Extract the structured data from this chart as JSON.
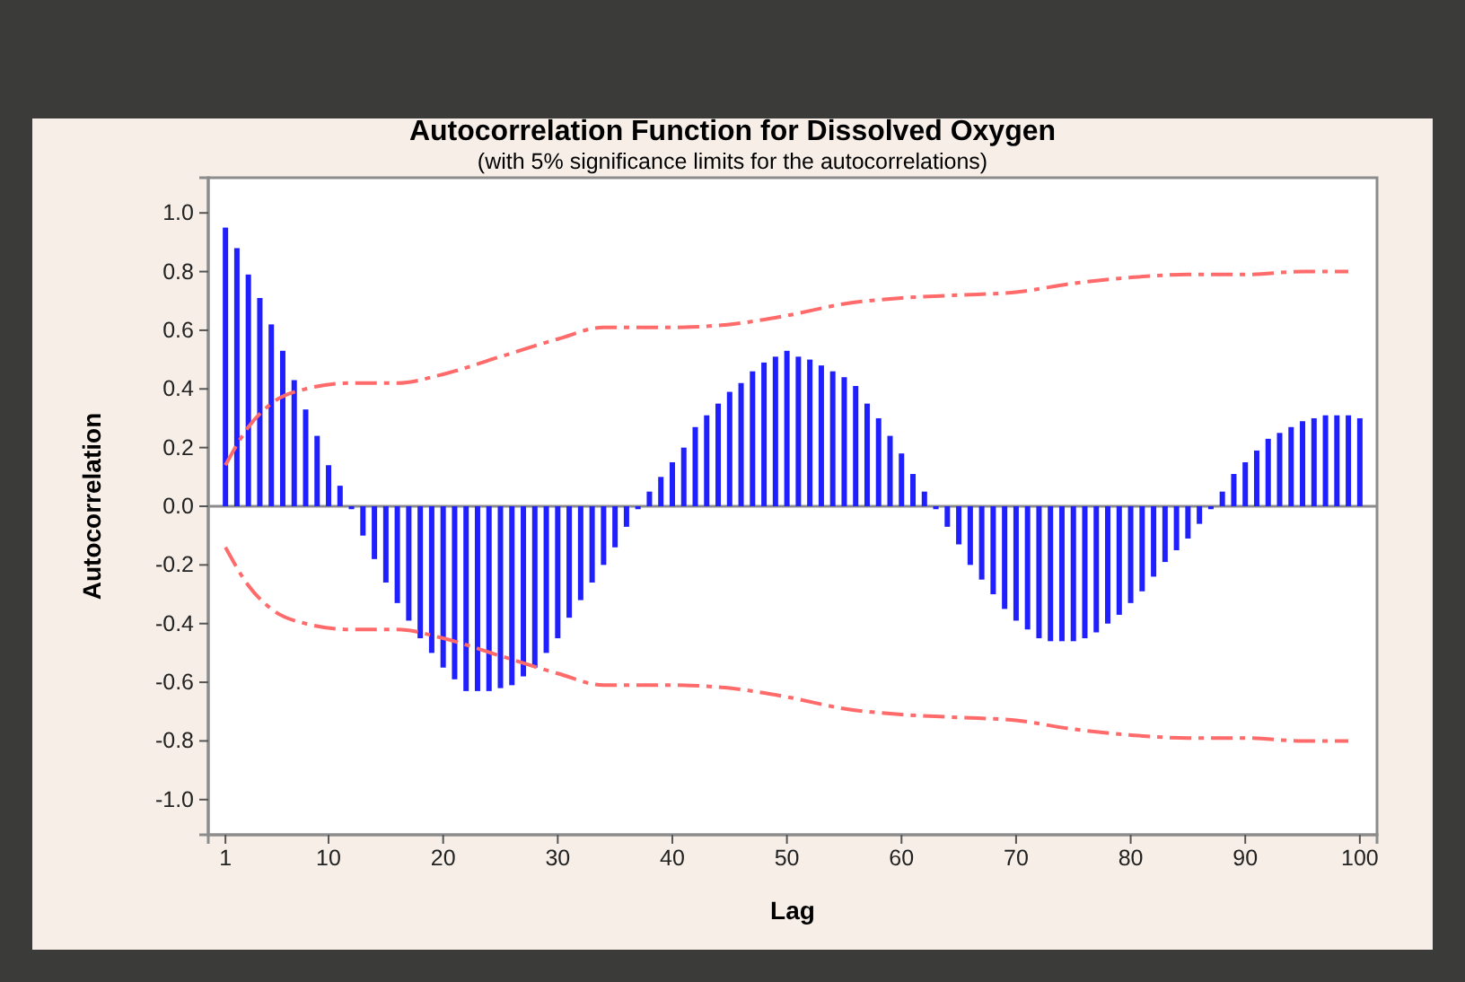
{
  "chart_data": {
    "type": "bar",
    "title": "Autocorrelation Function for Dissolved Oxygen",
    "subtitle": "(with 5% significance limits for the autocorrelations)",
    "xlabel": "Lag",
    "ylabel": "Autocorrelation",
    "x": [
      1,
      2,
      3,
      4,
      5,
      6,
      7,
      8,
      9,
      10,
      11,
      12,
      13,
      14,
      15,
      16,
      17,
      18,
      19,
      20,
      21,
      22,
      23,
      24,
      25,
      26,
      27,
      28,
      29,
      30,
      31,
      32,
      33,
      34,
      35,
      36,
      37,
      38,
      39,
      40,
      41,
      42,
      43,
      44,
      45,
      46,
      47,
      48,
      49,
      50,
      51,
      52,
      53,
      54,
      55,
      56,
      57,
      58,
      59,
      60,
      61,
      62,
      63,
      64,
      65,
      66,
      67,
      68,
      69,
      70,
      71,
      72,
      73,
      74,
      75,
      76,
      77,
      78,
      79,
      80,
      81,
      82,
      83,
      84,
      85,
      86,
      87,
      88,
      89,
      90,
      91,
      92,
      93,
      94,
      95,
      96,
      97,
      98,
      99,
      100
    ],
    "series": [
      {
        "color": "#1f1fff",
        "values": [
          0.95,
          0.88,
          0.79,
          0.71,
          0.62,
          0.53,
          0.43,
          0.33,
          0.24,
          0.14,
          0.07,
          -0.01,
          -0.1,
          -0.18,
          -0.26,
          -0.33,
          -0.39,
          -0.45,
          -0.5,
          -0.55,
          -0.59,
          -0.63,
          -0.63,
          -0.63,
          -0.62,
          -0.61,
          -0.58,
          -0.55,
          -0.5,
          -0.45,
          -0.38,
          -0.32,
          -0.26,
          -0.2,
          -0.14,
          -0.07,
          -0.01,
          0.05,
          0.1,
          0.15,
          0.2,
          0.27,
          0.31,
          0.35,
          0.39,
          0.42,
          0.46,
          0.49,
          0.51,
          0.53,
          0.51,
          0.5,
          0.48,
          0.46,
          0.44,
          0.41,
          0.35,
          0.3,
          0.24,
          0.18,
          0.11,
          0.05,
          -0.01,
          -0.07,
          -0.13,
          -0.2,
          -0.25,
          -0.3,
          -0.35,
          -0.39,
          -0.42,
          -0.45,
          -0.46,
          -0.46,
          -0.46,
          -0.45,
          -0.43,
          -0.4,
          -0.37,
          -0.33,
          -0.29,
          -0.24,
          -0.19,
          -0.15,
          -0.11,
          -0.06,
          -0.01,
          0.05,
          0.11,
          0.15,
          0.19,
          0.23,
          0.25,
          0.27,
          0.29,
          0.3,
          0.31,
          0.31,
          0.31,
          0.3
        ]
      },
      {
        "type": "line",
        "color": "#ff6a6a",
        "line_style": "dashed",
        "x": [
          1,
          3,
          5,
          8,
          12,
          16,
          20,
          25,
          30,
          34,
          40,
          45,
          50,
          55,
          60,
          65,
          70,
          75,
          80,
          85,
          90,
          95,
          99
        ],
        "values": [
          0.14,
          0.27,
          0.35,
          0.4,
          0.42,
          0.42,
          0.45,
          0.51,
          0.57,
          0.61,
          0.61,
          0.62,
          0.65,
          0.69,
          0.71,
          0.72,
          0.73,
          0.76,
          0.78,
          0.79,
          0.79,
          0.8,
          0.8
        ]
      },
      {
        "type": "line",
        "color": "#ff6a6a",
        "line_style": "dashed",
        "x": [
          1,
          3,
          5,
          8,
          12,
          16,
          20,
          25,
          30,
          34,
          40,
          45,
          50,
          55,
          60,
          65,
          70,
          75,
          80,
          85,
          90,
          95,
          99
        ],
        "values": [
          -0.14,
          -0.27,
          -0.35,
          -0.4,
          -0.42,
          -0.42,
          -0.45,
          -0.51,
          -0.57,
          -0.61,
          -0.61,
          -0.62,
          -0.65,
          -0.69,
          -0.71,
          -0.72,
          -0.73,
          -0.76,
          -0.78,
          -0.79,
          -0.79,
          -0.8,
          -0.8
        ]
      }
    ],
    "xlim": [
      -0.5,
      101.5
    ],
    "xticks": [
      1,
      10,
      20,
      30,
      40,
      50,
      60,
      70,
      80,
      90,
      100
    ],
    "ylim": [
      -1.12,
      1.12
    ],
    "yticks": [
      {
        "value": -1,
        "label": "-1.0"
      },
      {
        "value": -0.8,
        "label": "-0.8"
      },
      {
        "value": -0.6,
        "label": "-0.6"
      },
      {
        "value": -0.4,
        "label": "-0.4"
      },
      {
        "value": -0.2,
        "label": "-0.2"
      },
      {
        "value": 0,
        "label": "0.0"
      },
      {
        "value": 0.2,
        "label": "0.2"
      },
      {
        "value": 0.4,
        "label": "0.4"
      },
      {
        "value": 0.6,
        "label": "0.6"
      },
      {
        "value": 0.8,
        "label": "0.8"
      },
      {
        "value": 1,
        "label": "1.0"
      }
    ],
    "ref_lines": [
      {
        "axis": "y",
        "value": 0,
        "color": "#8c8c8c"
      }
    ],
    "grid": false
  }
}
